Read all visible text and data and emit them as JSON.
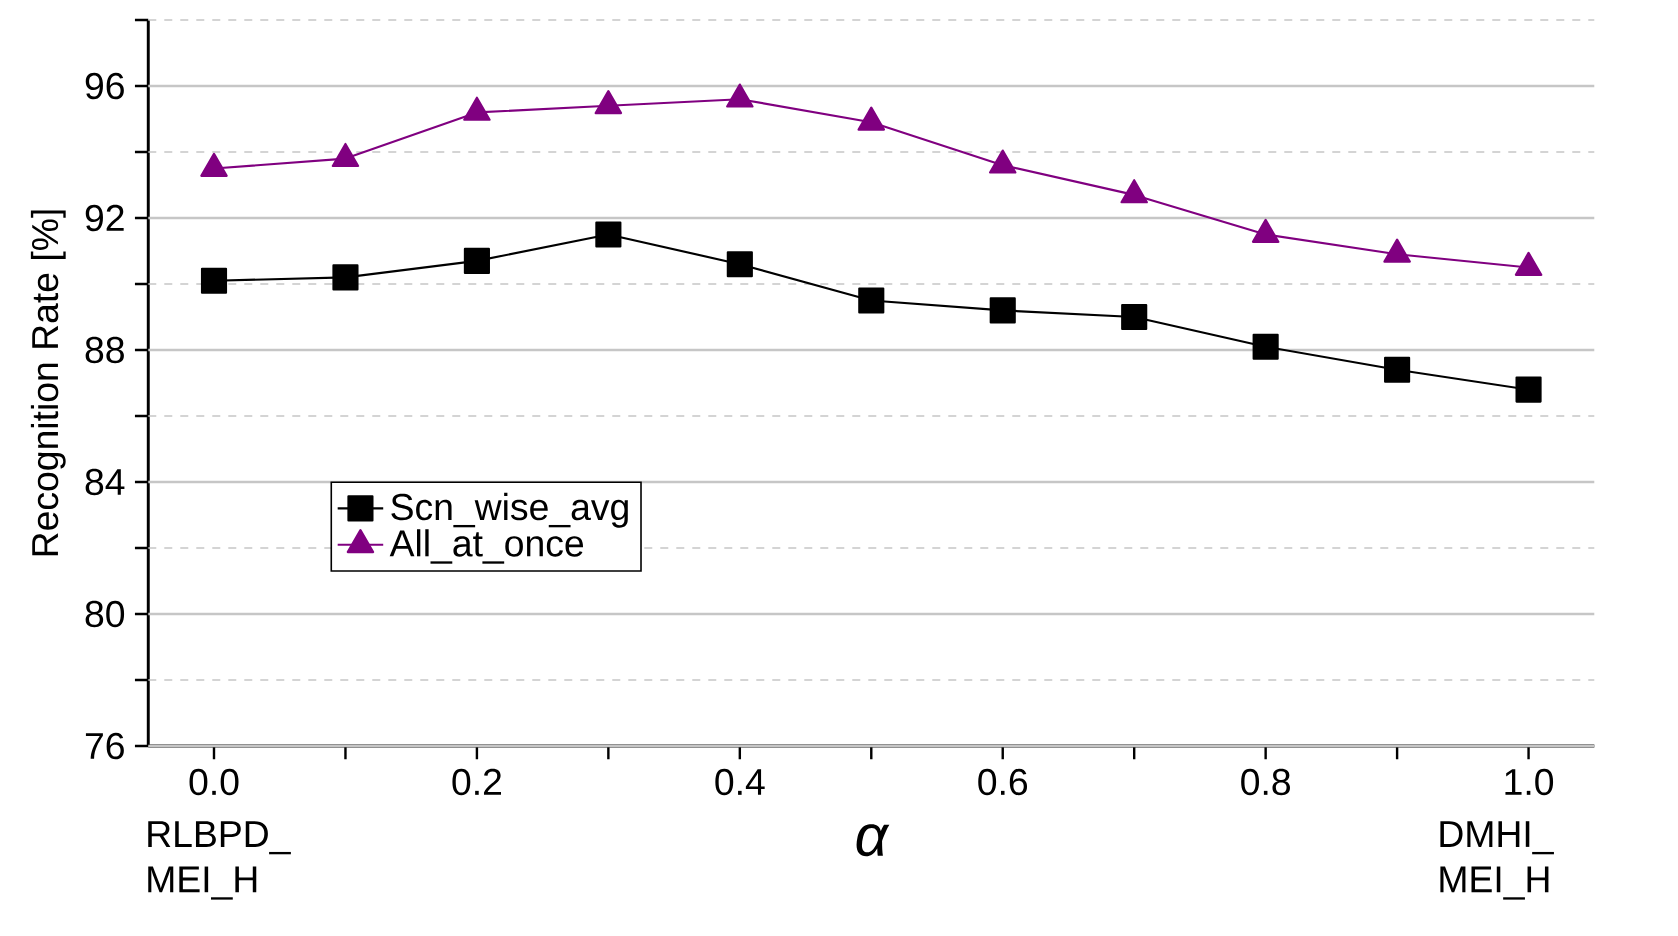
{
  "chart_data": {
    "type": "line",
    "xlabel": "α",
    "ylabel": "Recognition Rate [%]",
    "x": [
      0.0,
      0.1,
      0.2,
      0.3,
      0.4,
      0.5,
      0.6,
      0.7,
      0.8,
      0.9,
      1.0
    ],
    "series": [
      {
        "name": "Scn_wise_avg",
        "color": "#000000",
        "marker": "square",
        "values": [
          90.1,
          90.2,
          90.7,
          91.5,
          90.6,
          89.5,
          89.2,
          89.0,
          88.1,
          87.4,
          86.8
        ]
      },
      {
        "name": "All_at_once",
        "color": "#800080",
        "marker": "triangle",
        "values": [
          93.5,
          93.8,
          95.2,
          95.4,
          95.6,
          94.9,
          93.6,
          92.7,
          91.5,
          90.9,
          90.5
        ]
      }
    ],
    "xlim": [
      -0.05,
      1.05
    ],
    "xticks": [
      {
        "value": 0.0,
        "label": "0.0"
      },
      {
        "value": 0.1,
        "label": null
      },
      {
        "value": 0.2,
        "label": "0.2"
      },
      {
        "value": 0.3,
        "label": null
      },
      {
        "value": 0.4,
        "label": "0.4"
      },
      {
        "value": 0.5,
        "label": null
      },
      {
        "value": 0.6,
        "label": "0.6"
      },
      {
        "value": 0.7,
        "label": null
      },
      {
        "value": 0.8,
        "label": "0.8"
      },
      {
        "value": 0.9,
        "label": null
      },
      {
        "value": 1.0,
        "label": "1.0"
      }
    ],
    "ylim": [
      76,
      98
    ],
    "yticks": [
      76,
      {
        "value": 78,
        "label": null
      },
      80,
      {
        "value": 82,
        "label": null
      },
      84,
      {
        "value": 86,
        "label": null
      },
      88,
      {
        "value": 90,
        "label": null
      },
      92,
      {
        "value": 94,
        "label": null
      },
      96,
      {
        "value": 98,
        "label": null
      }
    ],
    "grid": "y",
    "legend": "bottom left",
    "line_style": "solid",
    "annotations": [
      "RLBPD_ MEI_H",
      "DMHI_ MEI_H"
    ]
  }
}
